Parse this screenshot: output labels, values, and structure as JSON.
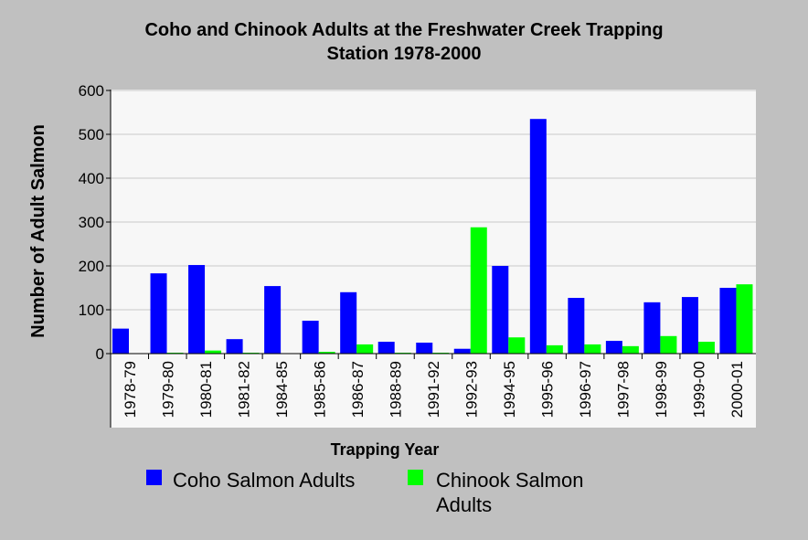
{
  "chart_data": {
    "type": "bar",
    "title_line1": "Coho and Chinook Adults at the Freshwater Creek Trapping",
    "title_line2": "Station 1978-2000",
    "xlabel": "Trapping Year",
    "ylabel": "Number of Adult Salmon",
    "ylim": [
      0,
      600
    ],
    "yticks": [
      0,
      100,
      200,
      300,
      400,
      500,
      600
    ],
    "grid": true,
    "legend_position": "bottom",
    "categories": [
      "1978-79",
      "1979-80",
      "1980-81",
      "1981-82",
      "1984-85",
      "1985-86",
      "1986-87",
      "1988-89",
      "1991-92",
      "1992-93",
      "1994-95",
      "1995-96",
      "1996-97",
      "1997-98",
      "1998-99",
      "1999-00",
      "2000-01"
    ],
    "series": [
      {
        "name": "Coho Salmon Adults",
        "color": "#0000ff",
        "values": [
          57,
          183,
          202,
          33,
          154,
          75,
          140,
          27,
          25,
          11,
          200,
          535,
          127,
          29,
          117,
          129,
          150
        ]
      },
      {
        "name": "Chinook Salmon Adults",
        "color": "#00ff00",
        "values": [
          0,
          2,
          7,
          2,
          0,
          4,
          21,
          2,
          2,
          288,
          37,
          19,
          21,
          17,
          40,
          27,
          158
        ]
      }
    ]
  },
  "legend": {
    "coho_label": "Coho Salmon Adults",
    "chinook_line1": "Chinook Salmon",
    "chinook_line2": "Adults"
  }
}
